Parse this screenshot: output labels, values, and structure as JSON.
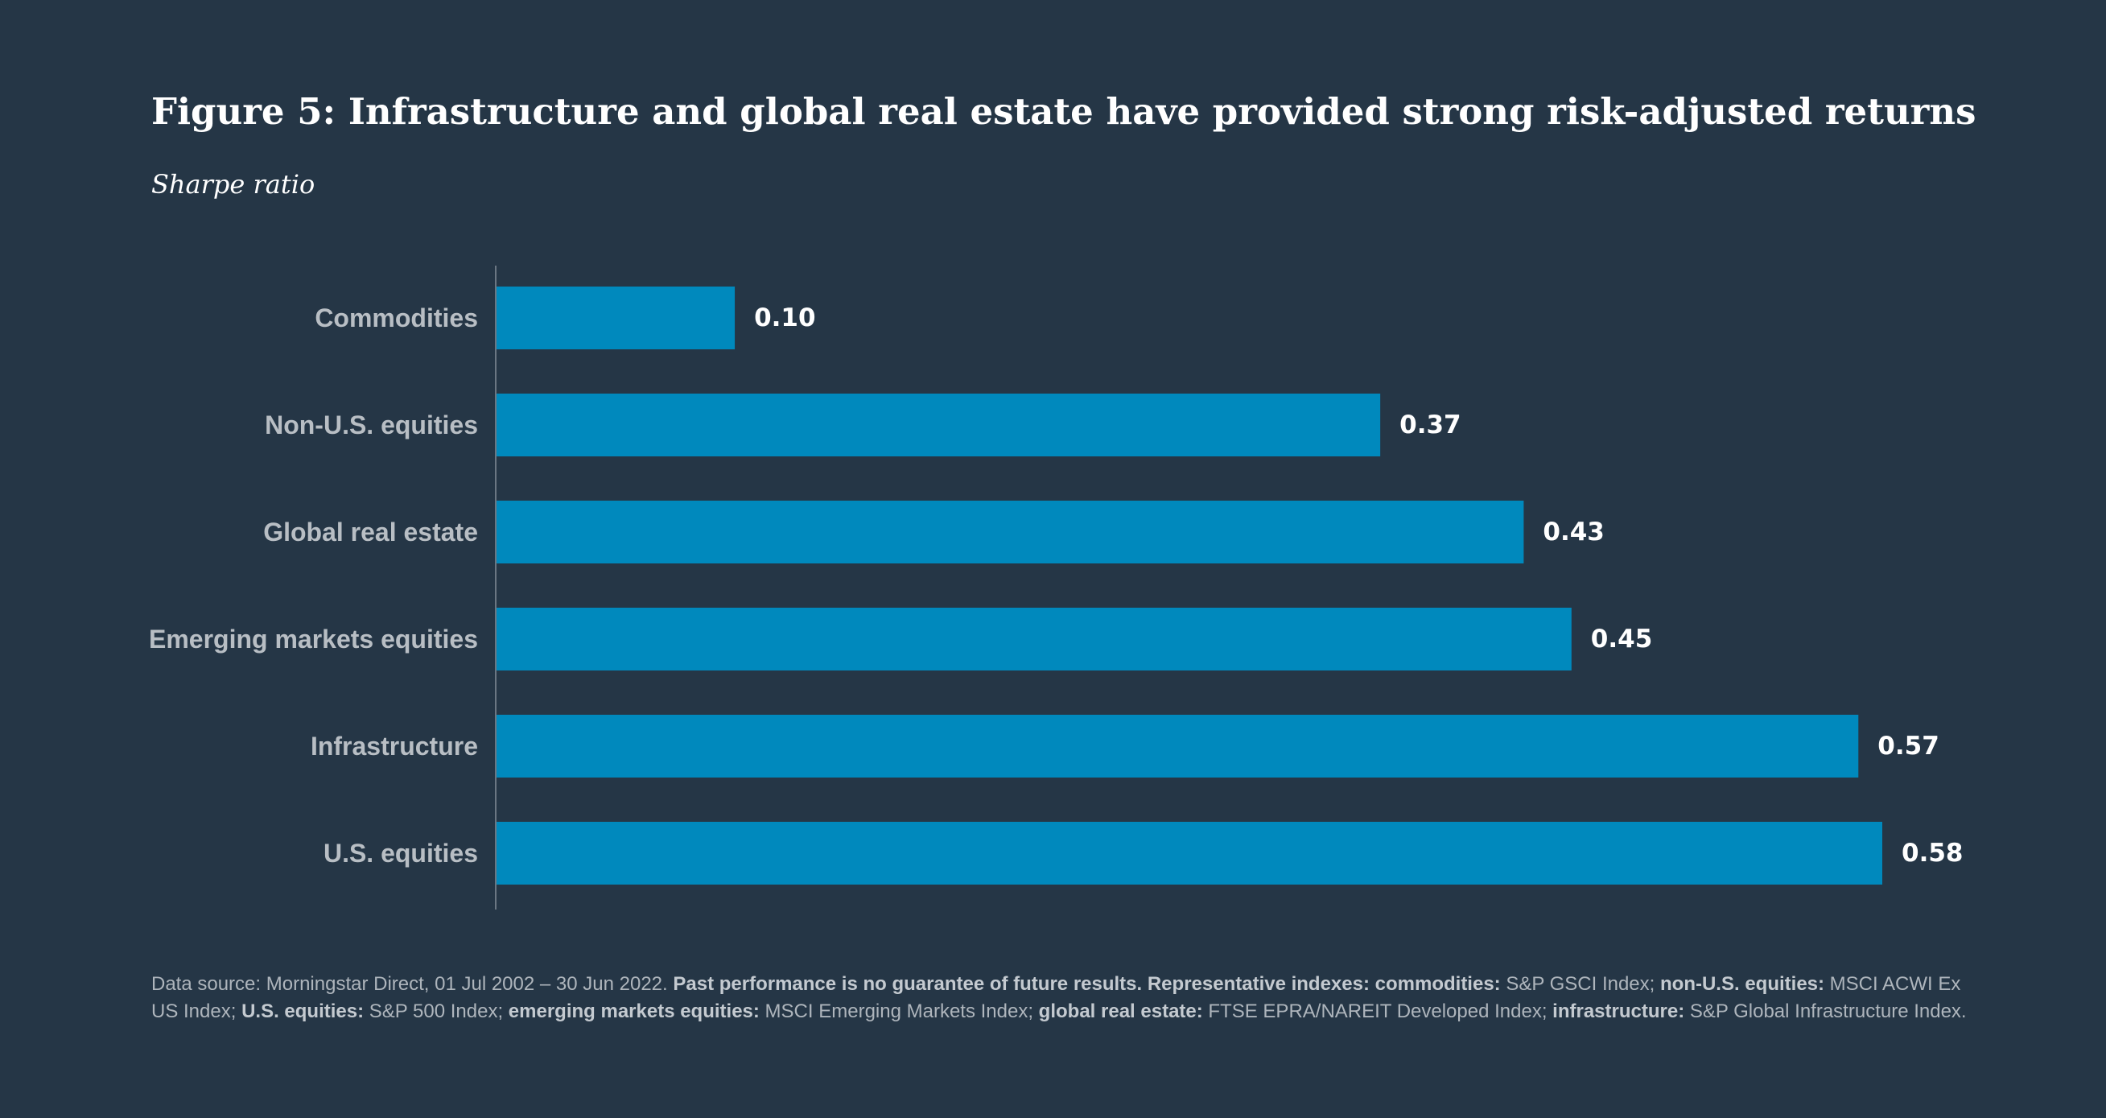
{
  "title": "Figure 5: Infrastructure and global real estate have provided strong risk-adjusted returns",
  "subtitle": "Sharpe ratio",
  "colors": {
    "background": "#253646",
    "bar": "#0089bd",
    "axis": "#6b7783"
  },
  "chart_data": {
    "type": "bar",
    "orientation": "horizontal",
    "title": "Figure 5: Infrastructure and global real estate have provided strong risk-adjusted returns",
    "ylabel": "Sharpe ratio",
    "xlabel": "",
    "categories": [
      "Commodities",
      "Non-U.S. equities",
      "Global real estate",
      "Emerging markets equities",
      "Infrastructure",
      "U.S. equities"
    ],
    "values": [
      0.1,
      0.37,
      0.43,
      0.45,
      0.57,
      0.58
    ],
    "value_labels": [
      "0.10",
      "0.37",
      "0.43",
      "0.45",
      "0.57",
      "0.58"
    ],
    "xlim": [
      0,
      0.58
    ],
    "grid": false,
    "legend": "none"
  },
  "footnote": {
    "parts": [
      {
        "text": "Data source: Morningstar Direct, 01 Jul 2002 – 30 Jun 2022. ",
        "bold": false
      },
      {
        "text": "Past performance is no guarantee of future results. Representative indexes: commodities:",
        "bold": true
      },
      {
        "text": " S&P GSCI Index; ",
        "bold": false
      },
      {
        "text": "non-U.S. equities:",
        "bold": true
      },
      {
        "text": " MSCI ACWI Ex US Index; ",
        "bold": false
      },
      {
        "text": "U.S. equities:",
        "bold": true
      },
      {
        "text": " S&P 500 Index; ",
        "bold": false
      },
      {
        "text": "emerging markets equities:",
        "bold": true
      },
      {
        "text": " MSCI Emerging Markets Index; ",
        "bold": false
      },
      {
        "text": "global real estate:",
        "bold": true
      },
      {
        "text": " FTSE EPRA/NAREIT Developed Index; ",
        "bold": false
      },
      {
        "text": "infrastructure:",
        "bold": true
      },
      {
        "text": " S&P Global Infrastructure Index.",
        "bold": false
      }
    ]
  }
}
